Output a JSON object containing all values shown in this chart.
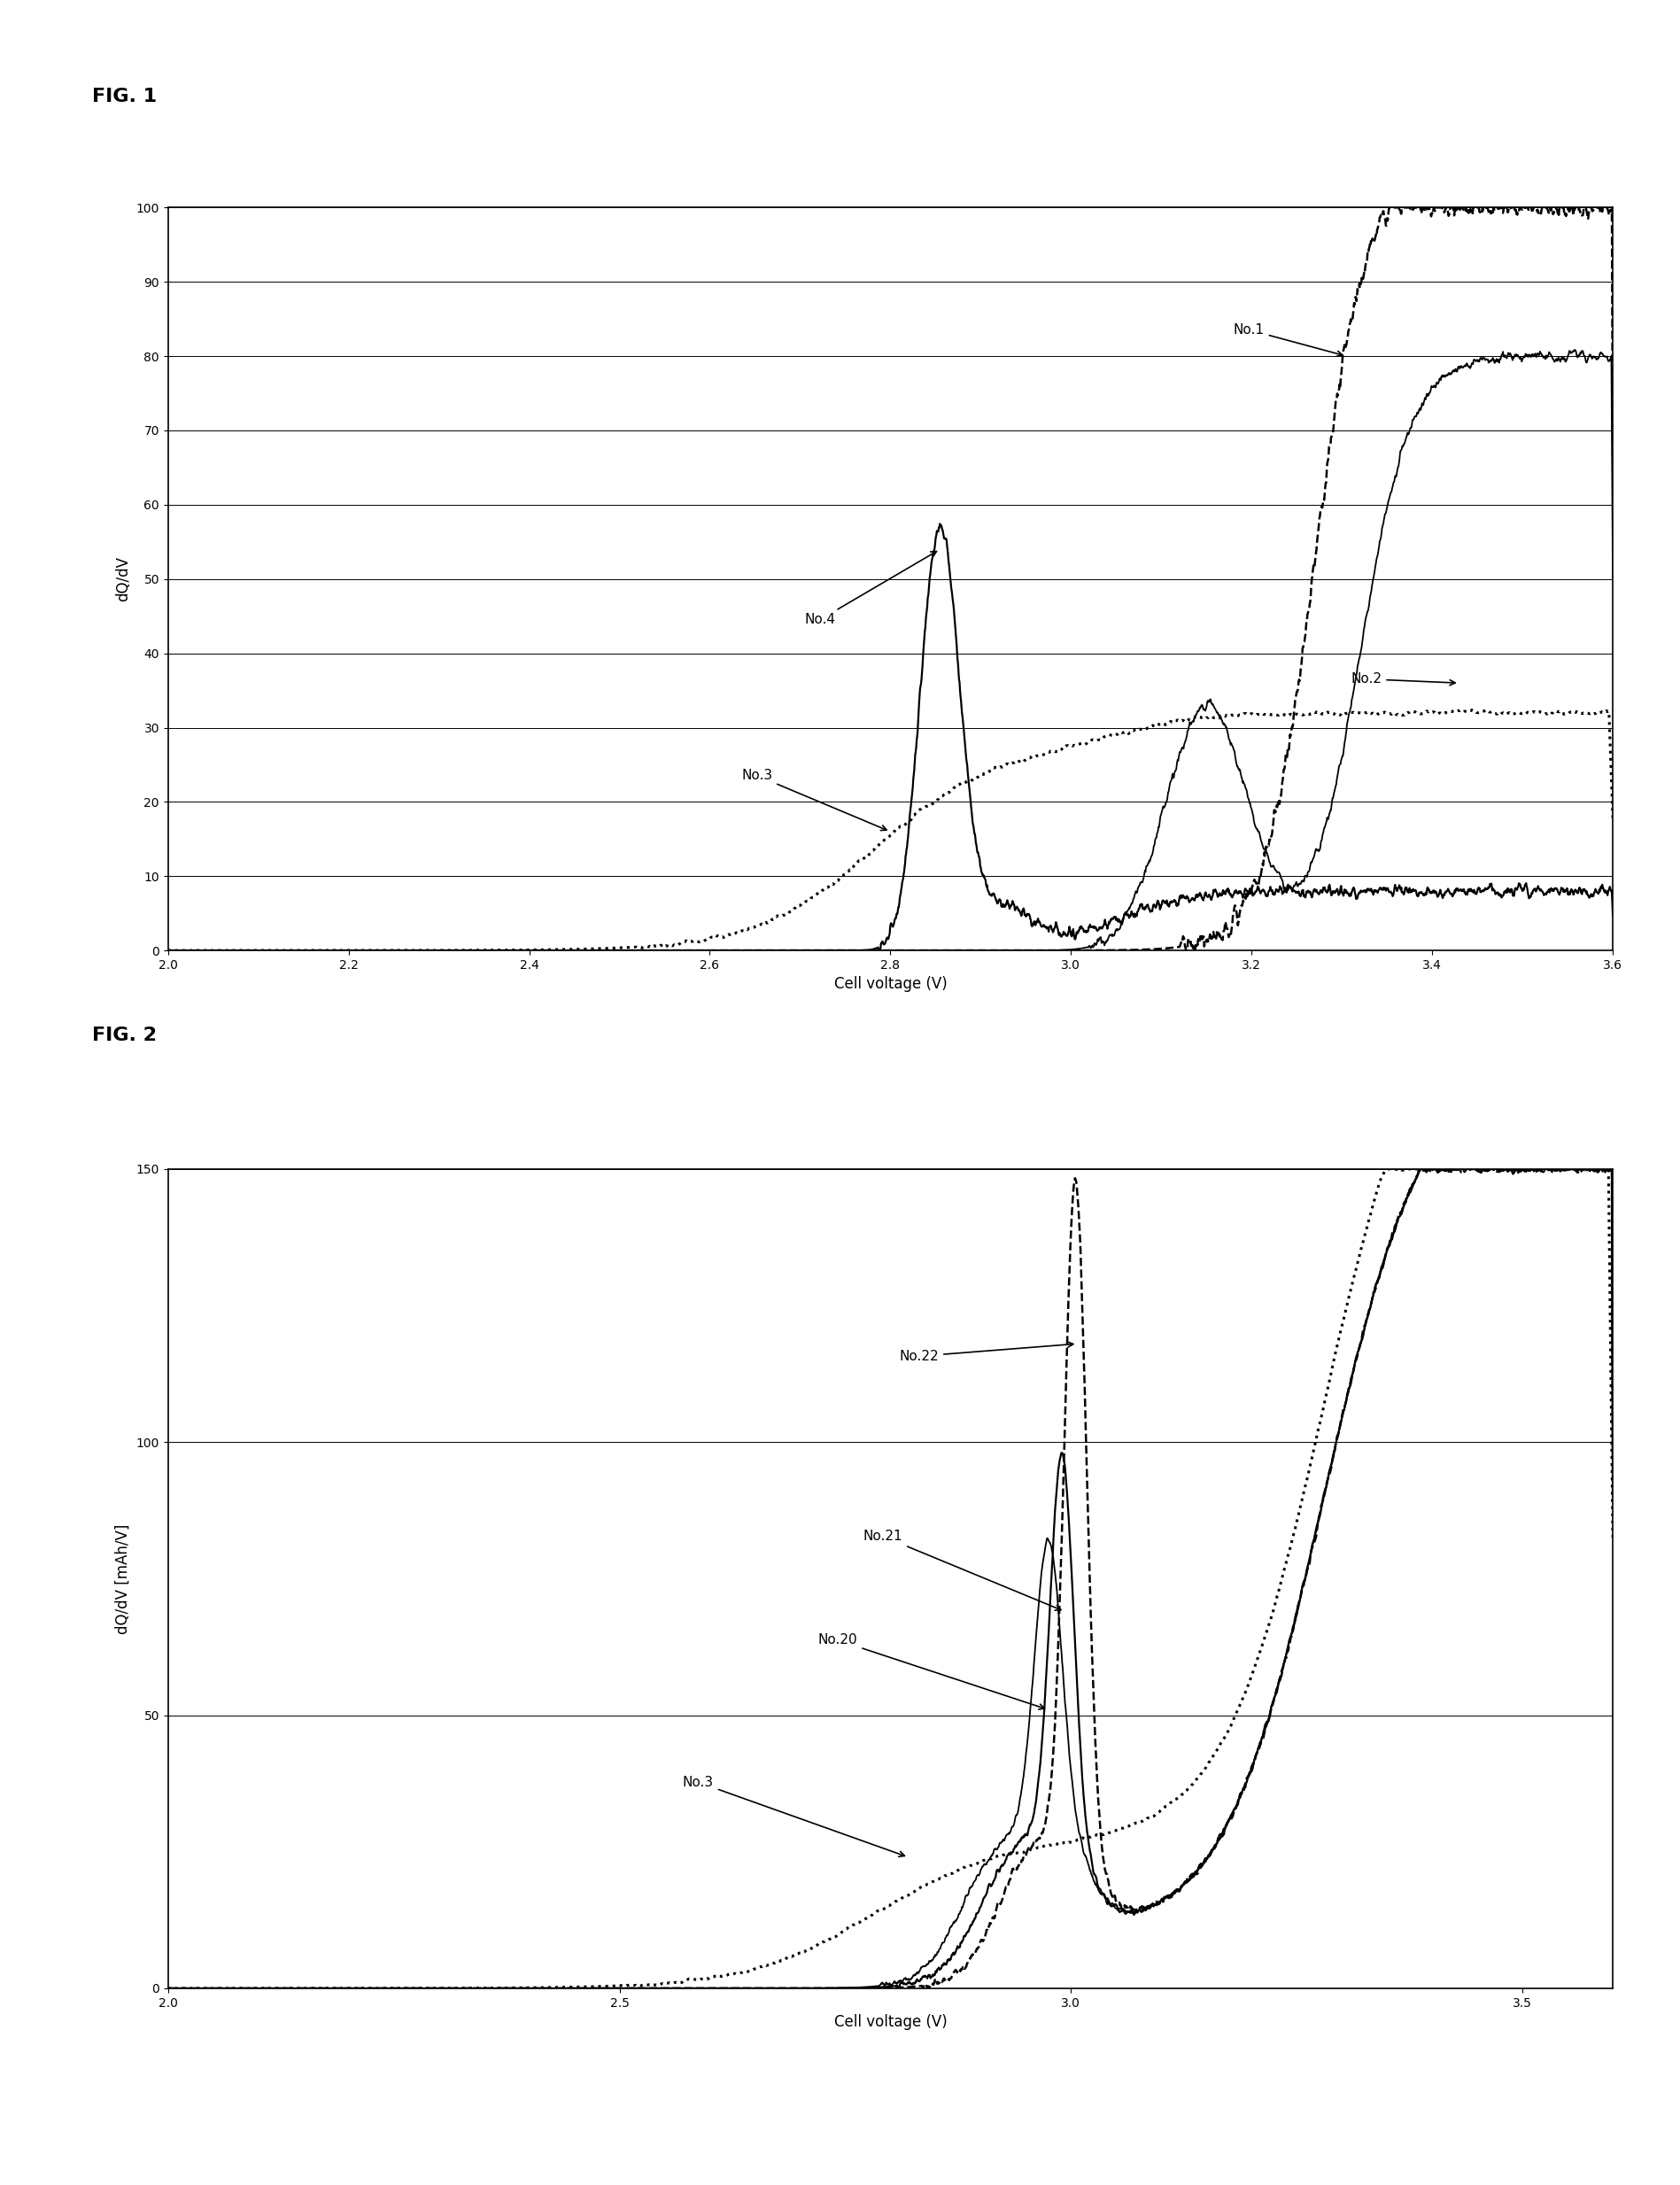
{
  "fig1": {
    "title": "FIG. 1",
    "xlabel": "Cell voltage (V)",
    "ylabel": "dQ/dV",
    "xlim": [
      2.0,
      3.6
    ],
    "ylim": [
      0,
      100
    ],
    "yticks": [
      0,
      10,
      20,
      30,
      40,
      50,
      60,
      70,
      80,
      90,
      100
    ],
    "xticks": [
      2.0,
      2.2,
      2.4,
      2.6,
      2.8,
      3.0,
      3.2,
      3.4,
      3.6
    ]
  },
  "fig2": {
    "title": "FIG. 2",
    "xlabel": "Cell voltage (V)",
    "ylabel": "dQ/dV [mAh/V]",
    "xlim": [
      2.0,
      3.6
    ],
    "ylim": [
      0,
      150
    ],
    "yticks": [
      0,
      50,
      100,
      150
    ],
    "xticks": [
      2.0,
      2.5,
      3.0,
      3.5
    ]
  },
  "page_bg": "#ffffff",
  "line_color": "#000000",
  "grid_color": "#000000",
  "grid_lw": 0.7,
  "ann_fs": 11,
  "axis_label_fs": 12,
  "tick_fs": 10,
  "title_fs": 16
}
